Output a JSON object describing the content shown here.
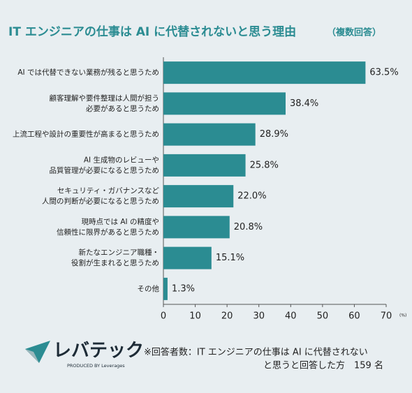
{
  "chart_data": {
    "type": "barh",
    "title": "IT エンジニアの仕事は AI に代替されないと思う理由",
    "title_note": "（複数回答）",
    "categories": [
      [
        "AI では代替できない業務が残ると思うため"
      ],
      [
        "顧客理解や要件整理は人間が担う",
        "必要があると思うため"
      ],
      [
        "上流工程や設計の重要性が高まると思うため"
      ],
      [
        "AI 生成物のレビューや",
        "品質管理が必要になると思うため"
      ],
      [
        "セキュリティ・ガバナンスなど",
        "人間の判断が必要になると思うため"
      ],
      [
        "現時点では AI の精度や",
        "信頼性に限界があると思うため"
      ],
      [
        "新たなエンジニア職種・",
        "役割が生まれると思うため"
      ],
      [
        "その他"
      ]
    ],
    "values": [
      63.5,
      38.4,
      28.9,
      25.8,
      22.0,
      20.8,
      15.1,
      1.3
    ],
    "value_labels": [
      "63.5%",
      "38.4%",
      "28.9%",
      "25.8%",
      "22.0%",
      "20.8%",
      "15.1%",
      "1.3%"
    ],
    "color": "#2b8c92",
    "xlim": [
      0,
      70
    ],
    "xticks": [
      0,
      10,
      20,
      30,
      40,
      50,
      60,
      70
    ],
    "x_unit": "(%)",
    "grid": false
  },
  "footer": {
    "logo": "レバテック",
    "logo_sub": "PRODUCED BY Leverages",
    "note": [
      "※回答者数：IT エンジニアの仕事は AI に代替されない",
      "と思うと回答した方　159 名"
    ]
  }
}
